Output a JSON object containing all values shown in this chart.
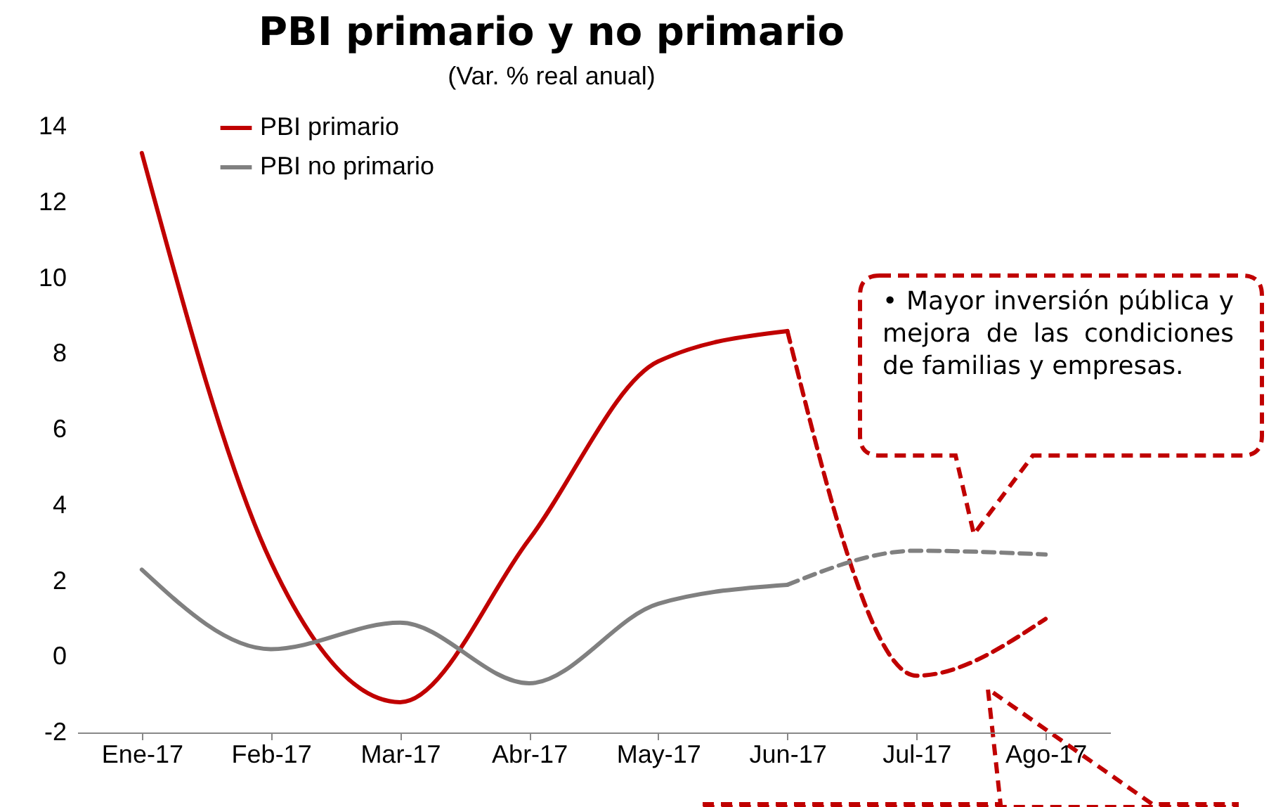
{
  "chart_data": {
    "type": "line",
    "title": "PBI primario y no primario",
    "subtitle": "(Var. % real anual)",
    "categories": [
      "Ene-17",
      "Feb-17",
      "Mar-17",
      "Abr-17",
      "May-17",
      "Jun-17",
      "Jul-17",
      "Ago-17"
    ],
    "series": [
      {
        "name": "PBI primario",
        "color": "#c00000",
        "values": [
          13.3,
          2.5,
          -1.2,
          3.1,
          7.8,
          8.6,
          null,
          null
        ]
      },
      {
        "name": "PBI no primario",
        "color": "#808080",
        "values": [
          2.3,
          0.2,
          0.9,
          -0.7,
          1.4,
          1.9,
          null,
          null
        ]
      },
      {
        "color": "#c00000",
        "line_style": "dashed",
        "values": [
          null,
          null,
          null,
          null,
          null,
          8.6,
          -0.5,
          1.0
        ]
      },
      {
        "color": "#808080",
        "line_style": "dashed",
        "values": [
          null,
          null,
          null,
          null,
          null,
          1.9,
          2.8,
          2.7
        ]
      }
    ],
    "ylim": [
      -2,
      14
    ],
    "yticks": [
      -2,
      0,
      2,
      4,
      6,
      8,
      10,
      12,
      14
    ],
    "grid": false,
    "legend": "top left",
    "line_style": "solid",
    "marker": "none",
    "annotations": [
      "• Mayor inversión pública y mejora de las condiciones de familias y empresas."
    ]
  }
}
